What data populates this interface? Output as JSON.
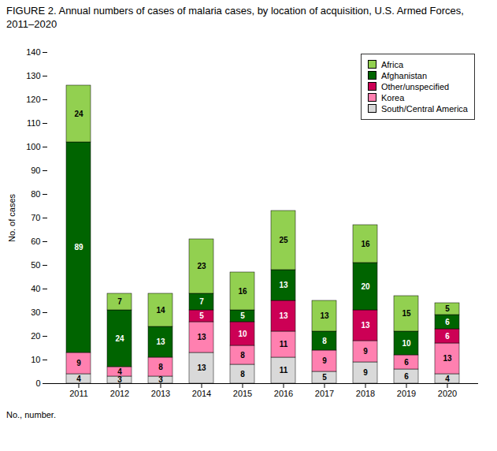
{
  "chart_data": {
    "type": "bar",
    "stacked": true,
    "title": "FIGURE 2. Annual numbers of cases of malaria cases, by location of acquisition, U.S. Armed Forces, 2011–2020",
    "ylabel": "No. of cases",
    "annotations": [
      "No., number."
    ],
    "categories": [
      "2011",
      "2012",
      "2013",
      "2014",
      "2015",
      "2016",
      "2017",
      "2018",
      "2019",
      "2020"
    ],
    "series": [
      {
        "name": "South/Central America",
        "color": "#d9d9d9",
        "values": [
          4,
          3,
          3,
          13,
          8,
          11,
          5,
          9,
          6,
          4
        ]
      },
      {
        "name": "Korea",
        "color": "#ff80b0",
        "values": [
          9,
          4,
          8,
          13,
          8,
          11,
          9,
          9,
          6,
          13
        ]
      },
      {
        "name": "Other/unspecified",
        "color": "#cc0055",
        "values": [
          0,
          0,
          0,
          5,
          10,
          13,
          0,
          13,
          0,
          6
        ]
      },
      {
        "name": "Afghanistan",
        "color": "#006400",
        "values": [
          89,
          24,
          13,
          7,
          5,
          13,
          8,
          20,
          10,
          6
        ]
      },
      {
        "name": "Africa",
        "color": "#92d050",
        "values": [
          24,
          7,
          14,
          23,
          16,
          25,
          13,
          16,
          15,
          5
        ]
      }
    ],
    "ylim": [
      0,
      140
    ],
    "yticks": [
      0,
      10,
      20,
      30,
      40,
      50,
      60,
      70,
      80,
      90,
      100,
      110,
      120,
      130,
      140
    ],
    "grid": false,
    "legend": "upper right",
    "data_labels": true
  }
}
